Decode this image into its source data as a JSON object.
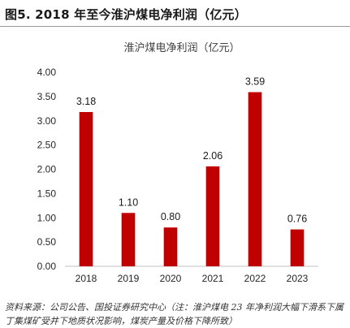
{
  "figure": {
    "title": "图5. 2018 年至今淮沪煤电净利润（亿元）",
    "source_label": "资料来源：",
    "source_text": "公司公告、国投证券研究中心（注：淮沪煤电 23 年净利润大幅下滑系下属丁集煤矿受井下地质状况影响，煤炭产量及价格下降所致）"
  },
  "chart_data": {
    "type": "bar",
    "title": "淮沪煤电净利润（亿元）",
    "categories": [
      "2018",
      "2019",
      "2020",
      "2021",
      "2022",
      "2023"
    ],
    "values": [
      3.18,
      1.1,
      0.8,
      2.06,
      3.59,
      0.76
    ],
    "value_labels": [
      "3.18",
      "1.10",
      "0.80",
      "2.06",
      "3.59",
      "0.76"
    ],
    "ylim": [
      0,
      4
    ],
    "yticks": [
      "0.00",
      "0.50",
      "1.00",
      "1.50",
      "2.00",
      "2.50",
      "3.00",
      "3.50",
      "4.00"
    ],
    "ytick_values": [
      0,
      0.5,
      1,
      1.5,
      2,
      2.5,
      3,
      3.5,
      4
    ],
    "bar_color": "#c00000",
    "grid": false,
    "legend": "none"
  }
}
